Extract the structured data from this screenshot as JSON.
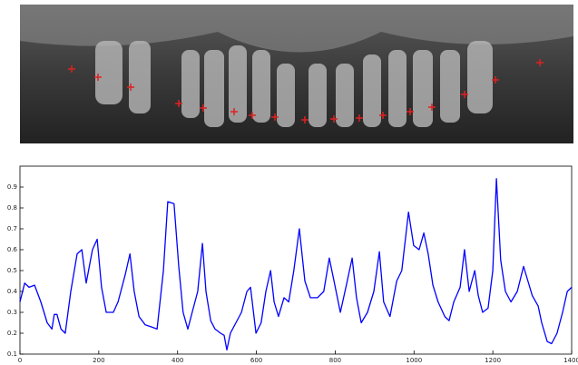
{
  "chart_data": {
    "type": "line",
    "x": [
      0,
      12,
      23,
      37,
      53,
      69,
      81,
      87,
      94,
      104,
      115,
      129,
      145,
      157,
      168,
      184,
      196,
      207,
      219,
      237,
      249,
      267,
      279,
      290,
      302,
      318,
      334,
      348,
      364,
      375,
      391,
      403,
      414,
      426,
      437,
      451,
      463,
      472,
      484,
      495,
      509,
      518,
      525,
      534,
      548,
      562,
      576,
      585,
      599,
      612,
      624,
      636,
      645,
      656,
      670,
      682,
      695,
      709,
      723,
      737,
      755,
      771,
      785,
      797,
      813,
      827,
      843,
      854,
      866,
      882,
      898,
      912,
      923,
      939,
      956,
      969,
      986,
      999,
      1013,
      1025,
      1036,
      1048,
      1061,
      1078,
      1089,
      1101,
      1117,
      1128,
      1140,
      1147,
      1154,
      1163,
      1174,
      1188,
      1200,
      1209,
      1220,
      1232,
      1246,
      1262,
      1278,
      1289,
      1300,
      1315,
      1324,
      1338,
      1349,
      1363,
      1377,
      1389,
      1400
    ],
    "series": [
      {
        "color": "#0000ff",
        "values": [
          0.35,
          0.44,
          0.42,
          0.43,
          0.35,
          0.25,
          0.22,
          0.29,
          0.29,
          0.22,
          0.2,
          0.4,
          0.58,
          0.6,
          0.44,
          0.6,
          0.65,
          0.42,
          0.3,
          0.3,
          0.35,
          0.48,
          0.58,
          0.4,
          0.28,
          0.24,
          0.23,
          0.22,
          0.5,
          0.83,
          0.82,
          0.52,
          0.3,
          0.22,
          0.3,
          0.4,
          0.63,
          0.4,
          0.26,
          0.22,
          0.2,
          0.19,
          0.12,
          0.2,
          0.25,
          0.3,
          0.4,
          0.42,
          0.2,
          0.25,
          0.4,
          0.5,
          0.35,
          0.28,
          0.37,
          0.35,
          0.5,
          0.7,
          0.45,
          0.37,
          0.37,
          0.4,
          0.56,
          0.45,
          0.3,
          0.42,
          0.56,
          0.37,
          0.25,
          0.3,
          0.4,
          0.59,
          0.35,
          0.28,
          0.45,
          0.5,
          0.78,
          0.62,
          0.6,
          0.68,
          0.58,
          0.43,
          0.35,
          0.28,
          0.26,
          0.35,
          0.42,
          0.6,
          0.4,
          0.45,
          0.5,
          0.38,
          0.3,
          0.32,
          0.5,
          0.94,
          0.55,
          0.4,
          0.35,
          0.4,
          0.52,
          0.45,
          0.38,
          0.33,
          0.25,
          0.16,
          0.15,
          0.2,
          0.3,
          0.4,
          0.42
        ]
      }
    ],
    "xlim": [
      0,
      1400
    ],
    "xticks": [
      0,
      200,
      400,
      600,
      800,
      1000,
      1200,
      1400
    ],
    "ylim": [
      0.1,
      1.0
    ],
    "yticks": [
      0.1,
      0.2,
      0.3,
      0.4,
      0.5,
      0.6,
      0.7,
      0.8,
      0.9
    ]
  }
}
